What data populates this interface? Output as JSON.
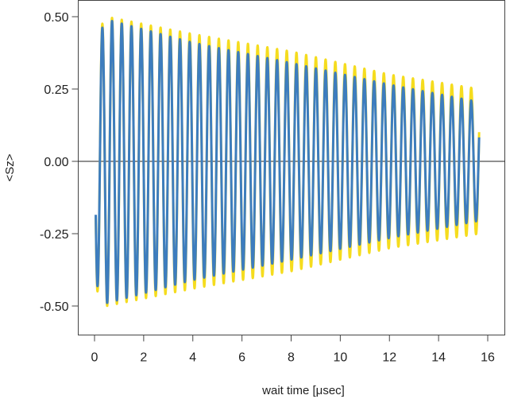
{
  "chart_data": {
    "type": "line",
    "title": "",
    "xlabel": "wait time [μsec]",
    "ylabel": "<Sz>",
    "xlim": [
      -0.6,
      16.6
    ],
    "ylim": [
      -0.6,
      0.5
    ],
    "xticks": [
      0,
      2,
      4,
      6,
      8,
      10,
      12,
      14,
      16
    ],
    "xtick_labels": [
      "0",
      "2",
      "4",
      "6",
      "8",
      "10",
      "12",
      "14",
      "16"
    ],
    "yticks": [
      0.5,
      0.25,
      0.0,
      -0.25,
      -0.5
    ],
    "ytick_labels": [
      "0.50",
      "0.25",
      "0.00",
      "-0.25",
      "-0.50"
    ],
    "zero_line": true,
    "grid": false,
    "series": [
      {
        "color": "#f5dc1e",
        "model": "damped cosine",
        "t_start": 0.05,
        "t_end": 15.65,
        "period": 0.395,
        "phase_offset": 0.08,
        "envelope": [
          [
            0.05,
            0.44
          ],
          [
            0.5,
            0.5
          ],
          [
            4.0,
            0.44
          ],
          [
            8.0,
            0.38
          ],
          [
            12.0,
            0.3
          ],
          [
            15.65,
            0.25
          ]
        ]
      },
      {
        "color": "#3d7dbe",
        "model": "damped cosine",
        "t_start": 0.05,
        "t_end": 15.65,
        "period": 0.395,
        "phase_offset": 0.08,
        "envelope": [
          [
            0.05,
            0.42
          ],
          [
            0.5,
            0.49
          ],
          [
            4.0,
            0.41
          ],
          [
            8.0,
            0.34
          ],
          [
            12.0,
            0.265
          ],
          [
            15.65,
            0.205
          ]
        ]
      }
    ]
  }
}
